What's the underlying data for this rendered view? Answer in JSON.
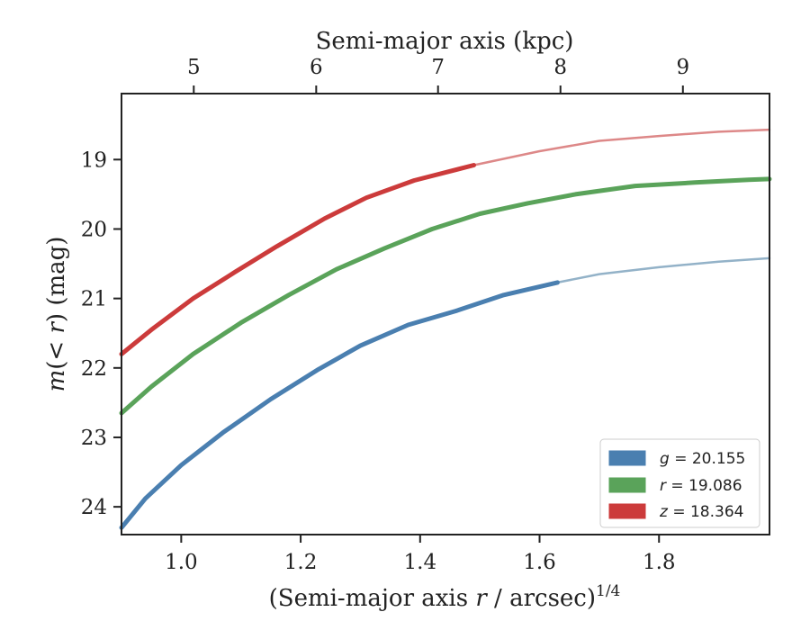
{
  "chart_data": {
    "type": "line",
    "xlabel_bottom": {
      "main": "(Semi-major axis ",
      "var": "r",
      "rest": " / arcsec)",
      "sup": "1/4"
    },
    "xlabel_top": "Semi-major axis (kpc)",
    "ylabel": {
      "m": "m",
      "paren": "(< ",
      "r": "r",
      "close": ") (mag)"
    },
    "xlim": [
      0.9,
      1.985
    ],
    "ylim": [
      24.4,
      18.05
    ],
    "y_inverted": true,
    "xticks": [
      1.0,
      1.2,
      1.4,
      1.6,
      1.8
    ],
    "xtick_labels": [
      "1.0",
      "1.2",
      "1.4",
      "1.6",
      "1.8"
    ],
    "yticks": [
      19,
      20,
      21,
      22,
      23,
      24
    ],
    "ytick_labels": [
      "19",
      "20",
      "21",
      "22",
      "23",
      "24"
    ],
    "top_axis": {
      "tick_labels": [
        "5",
        "6",
        "7",
        "8",
        "9"
      ],
      "tick_positions_bottom_units": [
        1.021,
        1.226,
        1.43,
        1.635,
        1.84
      ]
    },
    "grid": false,
    "legend_position": "lower-right",
    "series": [
      {
        "key": "g",
        "label_var": "g",
        "label_val": " = 20.155",
        "color": "#4a7fb0",
        "faint_color": "#93b2c8",
        "solid_until": 1.63,
        "x": [
          0.9,
          0.94,
          1.0,
          1.07,
          1.15,
          1.23,
          1.3,
          1.38,
          1.46,
          1.54,
          1.63,
          1.7,
          1.8,
          1.9,
          1.985
        ],
        "y": [
          24.3,
          23.88,
          23.4,
          22.93,
          22.45,
          22.02,
          21.68,
          21.38,
          21.18,
          20.95,
          20.77,
          20.65,
          20.55,
          20.47,
          20.42
        ]
      },
      {
        "key": "r",
        "label_var": "r",
        "label_val": " = 19.086",
        "color": "#5aa35a",
        "faint_color": "#5aa35a",
        "solid_until": 1.985,
        "x": [
          0.9,
          0.95,
          1.02,
          1.1,
          1.18,
          1.26,
          1.34,
          1.42,
          1.5,
          1.58,
          1.66,
          1.76,
          1.86,
          1.95,
          1.985
        ],
        "y": [
          22.65,
          22.27,
          21.8,
          21.35,
          20.95,
          20.58,
          20.28,
          20.0,
          19.78,
          19.63,
          19.5,
          19.38,
          19.33,
          19.29,
          19.28
        ]
      },
      {
        "key": "z",
        "label_var": "z",
        "label_val": " = 18.364",
        "color": "#cc3b3b",
        "faint_color": "#dd8888",
        "solid_until": 1.49,
        "x": [
          0.9,
          0.95,
          1.02,
          1.09,
          1.16,
          1.24,
          1.31,
          1.39,
          1.49,
          1.6,
          1.7,
          1.8,
          1.9,
          1.985
        ],
        "y": [
          21.8,
          21.45,
          21.0,
          20.62,
          20.25,
          19.85,
          19.55,
          19.3,
          19.08,
          18.88,
          18.73,
          18.66,
          18.6,
          18.57
        ]
      }
    ]
  }
}
